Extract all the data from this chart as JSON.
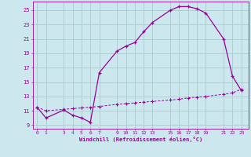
{
  "xlabel": "Windchill (Refroidissement éolien,°C)",
  "bg_color": "#cce8ee",
  "line_color": "#990099",
  "grid_color": "#aacccc",
  "xlim": [
    -0.5,
    23.8
  ],
  "ylim": [
    8.5,
    26.2
  ],
  "xticks": [
    0,
    1,
    3,
    4,
    5,
    6,
    7,
    9,
    10,
    11,
    12,
    13,
    15,
    16,
    17,
    18,
    19,
    21,
    22,
    23
  ],
  "yticks": [
    9,
    11,
    13,
    15,
    17,
    19,
    21,
    23,
    25
  ],
  "curve1_x": [
    0,
    1,
    3,
    4,
    5,
    6,
    7,
    9,
    10,
    11,
    12,
    13,
    15,
    16,
    17,
    18,
    19,
    21,
    22,
    23
  ],
  "curve1_y": [
    11.5,
    10.0,
    11.1,
    10.4,
    10.0,
    9.4,
    16.3,
    19.3,
    20.0,
    20.5,
    22.0,
    23.3,
    25.0,
    25.5,
    25.5,
    25.2,
    24.6,
    21.0,
    15.8,
    13.8
  ],
  "curve2_x": [
    0,
    1,
    3,
    4,
    5,
    6,
    7,
    9,
    10,
    11,
    12,
    13,
    15,
    16,
    17,
    18,
    19,
    21,
    22,
    23
  ],
  "curve2_y": [
    11.5,
    11.0,
    11.2,
    11.3,
    11.4,
    11.5,
    11.6,
    11.9,
    12.0,
    12.1,
    12.2,
    12.3,
    12.5,
    12.6,
    12.8,
    12.9,
    13.0,
    13.3,
    13.5,
    14.0
  ]
}
